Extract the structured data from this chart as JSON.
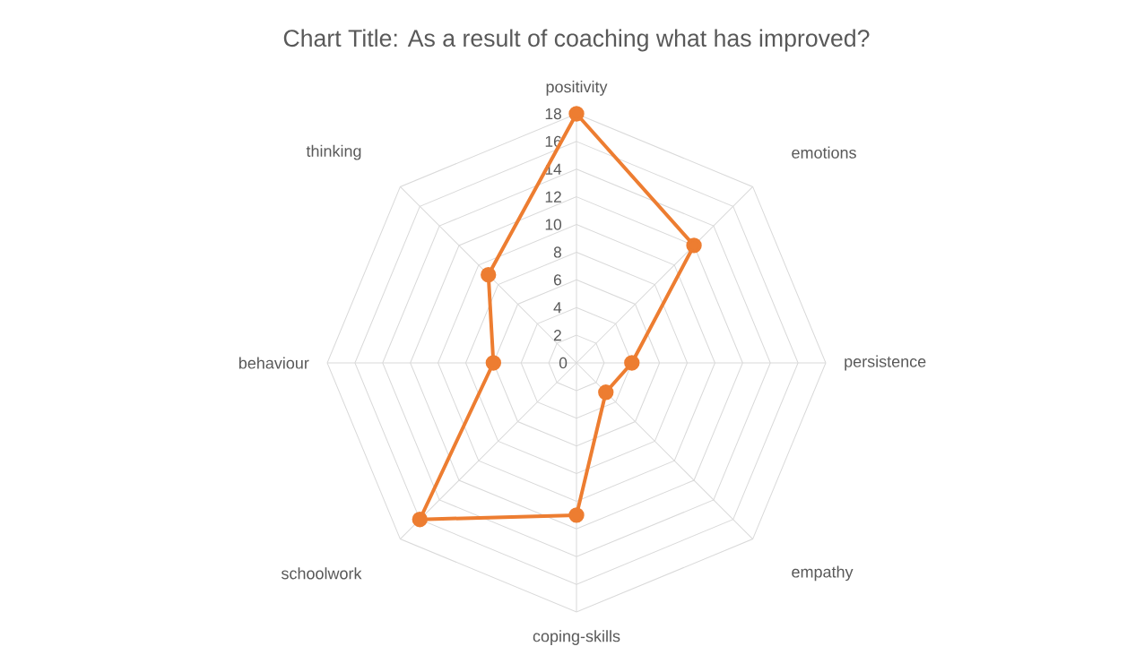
{
  "chart_data": {
    "type": "radar",
    "title": "Chart Title: As a result of coaching what has improved?",
    "categories": [
      "positivity",
      "emotions",
      "persistence",
      "empathy",
      "coping-skills",
      "schoolwork",
      "behaviour",
      "thinking"
    ],
    "series": [
      {
        "color": "#ed7d31",
        "values": [
          18,
          12,
          4,
          3,
          11,
          16,
          6,
          9
        ]
      }
    ],
    "ylim": [
      0,
      18
    ],
    "yticks": [
      0,
      2,
      4,
      6,
      8,
      10,
      12,
      14,
      16,
      18
    ],
    "grid": true,
    "marker": "circle"
  }
}
